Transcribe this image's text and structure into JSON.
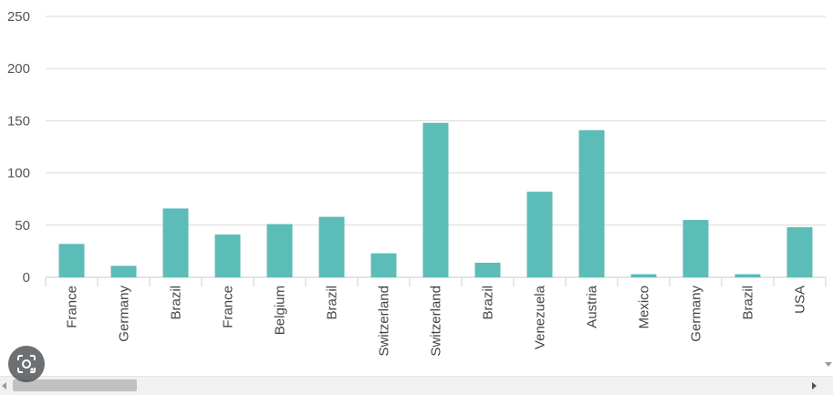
{
  "chart_data": {
    "type": "bar",
    "categories": [
      "France",
      "Germany",
      "Brazil",
      "France",
      "Belgium",
      "Brazil",
      "Switzerland",
      "Switzerland",
      "Brazil",
      "Venezuela",
      "Austria",
      "Mexico",
      "Germany",
      "Brazil",
      "USA"
    ],
    "values": [
      32,
      11,
      66,
      41,
      51,
      58,
      23,
      148,
      14,
      82,
      141,
      3,
      55,
      3,
      48
    ],
    "ylim": [
      0,
      250
    ],
    "yticks": [
      "0",
      "50",
      "100",
      "150",
      "200",
      "250"
    ],
    "grid": true,
    "bar_color": "#5bbcb8",
    "title": "",
    "xlabel": "",
    "ylabel": ""
  },
  "icons": {
    "lens": "visual-search-icon",
    "scroll_left": "arrow-left-icon",
    "scroll_right": "arrow-right-icon",
    "scroll_down": "arrow-down-icon"
  }
}
